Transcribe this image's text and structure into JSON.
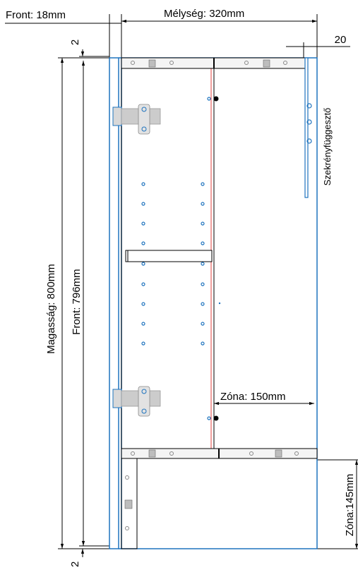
{
  "labels": {
    "front_thickness": "Front: 18mm",
    "depth": "Mélység: 320mm",
    "gap_top": "2",
    "gap_bottom": "2",
    "offset_right": "20",
    "height": "Magasság: 800mm",
    "front_height": "Front: 796mm",
    "hanger": "Szekrényfüggesztő",
    "zone_width": "Zóna: 150mm",
    "zone_height": "Zóna:145mm"
  },
  "colors": {
    "outline": "#1e73be",
    "red": "#e0403c",
    "dim": "#000000",
    "hinge": "#c8c8c8",
    "rail": "#bdbdbd"
  },
  "icons": {
    "hinge": "hinge-icon",
    "shelf_pin": "shelf-pin-icon",
    "hanger_bracket": "cabinet-hanger-icon"
  }
}
